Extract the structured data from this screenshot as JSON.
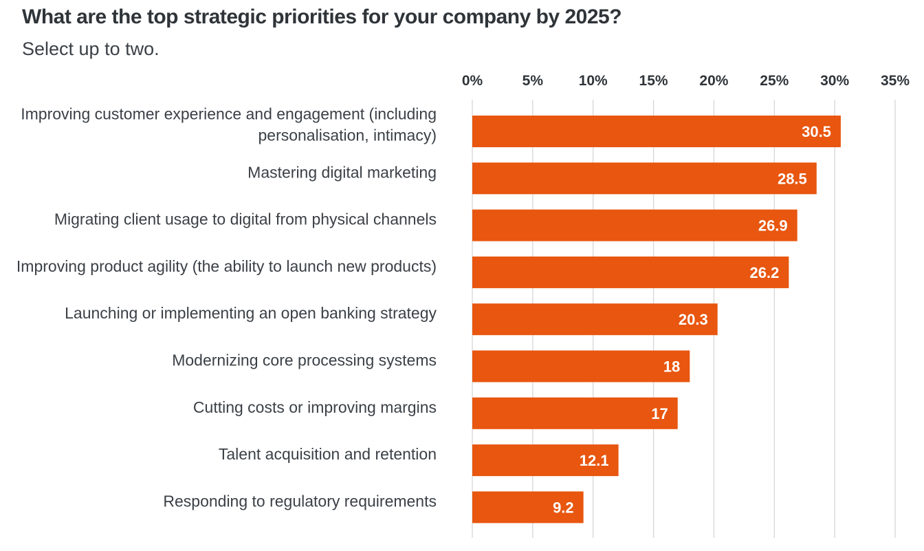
{
  "chart_data": {
    "type": "bar",
    "orientation": "horizontal",
    "title": "What are the top strategic priorities for your company by 2025?",
    "subtitle": "Select up to two.",
    "categories": [
      [
        "Improving customer experience and engagement (including",
        "personalisation, intimacy)"
      ],
      [
        "Mastering digital marketing"
      ],
      [
        "Migrating client usage to digital from physical channels"
      ],
      [
        "Improving product agility (the ability to launch new products)"
      ],
      [
        "Launching or implementing an open banking strategy"
      ],
      [
        "Modernizing core processing systems"
      ],
      [
        "Cutting costs or improving margins"
      ],
      [
        "Talent acquisition and retention"
      ],
      [
        "Responding to regulatory requirements"
      ]
    ],
    "values": [
      30.5,
      28.5,
      26.9,
      26.2,
      20.3,
      18,
      17,
      12.1,
      9.2
    ],
    "value_labels": [
      "30.5",
      "28.5",
      "26.9",
      "26.2",
      "20.3",
      "18",
      "17",
      "12.1",
      "9.2"
    ],
    "xlim": [
      0,
      35
    ],
    "xticks": [
      0,
      5,
      10,
      15,
      20,
      25,
      30,
      35
    ],
    "xtick_labels": [
      "0%",
      "5%",
      "10%",
      "15%",
      "20%",
      "25%",
      "30%",
      "35%"
    ],
    "axis_position": "top",
    "grid": true,
    "bar_color": "#e8560f",
    "grid_color": "#d6d6d6"
  }
}
